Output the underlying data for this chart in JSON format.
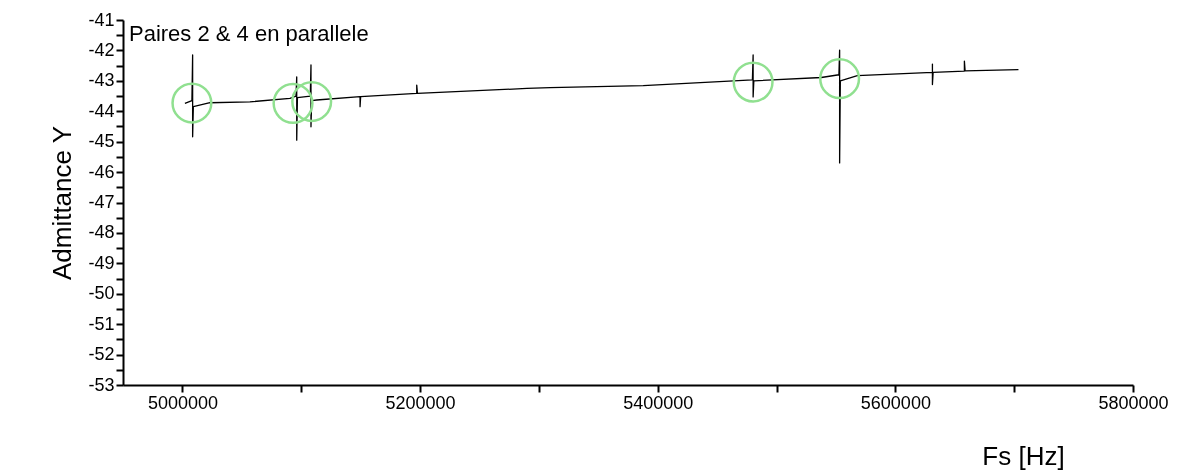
{
  "chart_data": {
    "type": "line",
    "xlabel": "Fs [Hz]",
    "ylabel": "Admittance Y",
    "annotations": [
      "Paires 2 & 4  en parallele"
    ],
    "grid": false,
    "line_style": "solid",
    "xlim": [
      4950000,
      5800000
    ],
    "xticks": [
      5000000,
      {
        "value": 5100000,
        "label": null
      },
      5200000,
      {
        "value": 5300000,
        "label": null
      },
      5400000,
      {
        "value": 5500000,
        "label": null
      },
      5600000,
      {
        "value": 5700000,
        "label": null
      },
      5800000
    ],
    "ylim": [
      -53,
      -41
    ],
    "yticks": [
      -53,
      {
        "value": -52.5,
        "label": null
      },
      -52,
      {
        "value": -51.5,
        "label": null
      },
      -51,
      {
        "value": -50.5,
        "label": null
      },
      -50,
      {
        "value": -49.5,
        "label": null
      },
      -49,
      {
        "value": -48.5,
        "label": null
      },
      -48,
      {
        "value": -47.5,
        "label": null
      },
      -47,
      {
        "value": -46.5,
        "label": null
      },
      -46,
      {
        "value": -45.5,
        "label": null
      },
      -45,
      {
        "value": -44.5,
        "label": null
      },
      -44,
      {
        "value": -43.5,
        "label": null
      },
      -43,
      {
        "value": -42.5,
        "label": null
      },
      -42,
      {
        "value": -41.5,
        "label": null
      },
      -41
    ],
    "series": [
      {
        "type": "line",
        "color": "#000000",
        "marker": "none",
        "x": [
          5002100,
          5008000,
          5008600,
          5008600,
          5009200,
          5023200,
          5056800,
          5090500,
          5095600,
          5096200,
          5096200,
          5096800,
          5107600,
          5108200,
          5108200,
          5108800,
          5113000,
          5149500,
          5149500,
          5150000,
          5197200,
          5197200,
          5197800,
          5289900,
          5309500,
          5387800,
          5459900,
          5479700,
          5480300,
          5480300,
          5480900,
          5537700,
          5552500,
          5553100,
          5553100,
          5553700,
          5568000,
          5631200,
          5631200,
          5631200,
          5631800,
          5658100,
          5658100,
          5658700,
          5703600
        ],
        "values": [
          -43.74,
          -43.65,
          -42.15,
          -44.84,
          -43.85,
          -43.72,
          -43.69,
          -43.58,
          -43.5,
          -42.87,
          -44.95,
          -43.55,
          -43.5,
          -42.48,
          -44.51,
          -43.65,
          -43.63,
          -43.52,
          -43.85,
          -43.52,
          -43.41,
          -43.14,
          -43.41,
          -43.25,
          -43.22,
          -43.16,
          -43.01,
          -42.97,
          -42.15,
          -43.53,
          -43.0,
          -42.89,
          -42.8,
          -41.99,
          -45.7,
          -43.0,
          -42.83,
          -42.72,
          -42.45,
          -43.12,
          -42.72,
          -42.68,
          -42.35,
          -42.67,
          -42.63
        ]
      },
      {
        "type": "scatter",
        "color": "#90e090",
        "marker": "circle",
        "x": [
          5008000,
          5093100,
          5108800,
          5480300,
          5553100
        ],
        "values": [
          -43.73,
          -43.74,
          -43.68,
          -43.04,
          -42.93
        ]
      }
    ]
  }
}
